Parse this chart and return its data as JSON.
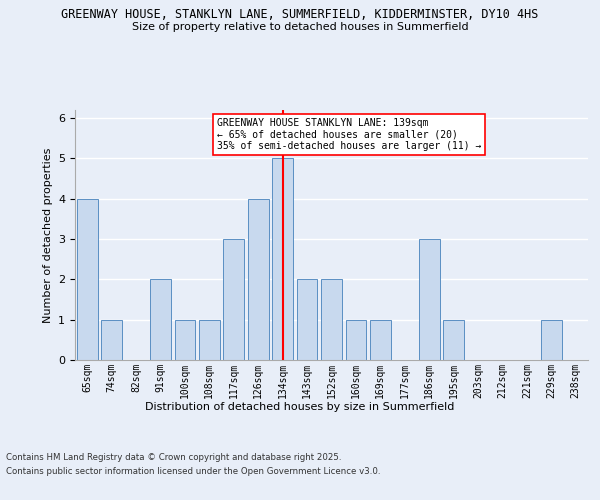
{
  "title_line1": "GREENWAY HOUSE, STANKLYN LANE, SUMMERFIELD, KIDDERMINSTER, DY10 4HS",
  "title_line2": "Size of property relative to detached houses in Summerfield",
  "xlabel": "Distribution of detached houses by size in Summerfield",
  "ylabel": "Number of detached properties",
  "categories": [
    "65sqm",
    "74sqm",
    "82sqm",
    "91sqm",
    "100sqm",
    "108sqm",
    "117sqm",
    "126sqm",
    "134sqm",
    "143sqm",
    "152sqm",
    "160sqm",
    "169sqm",
    "177sqm",
    "186sqm",
    "195sqm",
    "203sqm",
    "212sqm",
    "221sqm",
    "229sqm",
    "238sqm"
  ],
  "values": [
    4,
    1,
    0,
    2,
    1,
    1,
    3,
    4,
    5,
    2,
    2,
    1,
    1,
    0,
    3,
    1,
    0,
    0,
    0,
    1,
    0
  ],
  "bar_color": "#c8d9ee",
  "bar_edge_color": "#5a8fc3",
  "highlight_index": 8,
  "annotation_line1": "GREENWAY HOUSE STANKLYN LANE: 139sqm",
  "annotation_line2": "← 65% of detached houses are smaller (20)",
  "annotation_line3": "35% of semi-detached houses are larger (11) →",
  "ylim": [
    0,
    6.2
  ],
  "yticks": [
    0,
    1,
    2,
    3,
    4,
    5,
    6
  ],
  "footer_line1": "Contains HM Land Registry data © Crown copyright and database right 2025.",
  "footer_line2": "Contains public sector information licensed under the Open Government Licence v3.0.",
  "bg_color": "#e8eef8",
  "plot_bg_color": "#e8eef8"
}
